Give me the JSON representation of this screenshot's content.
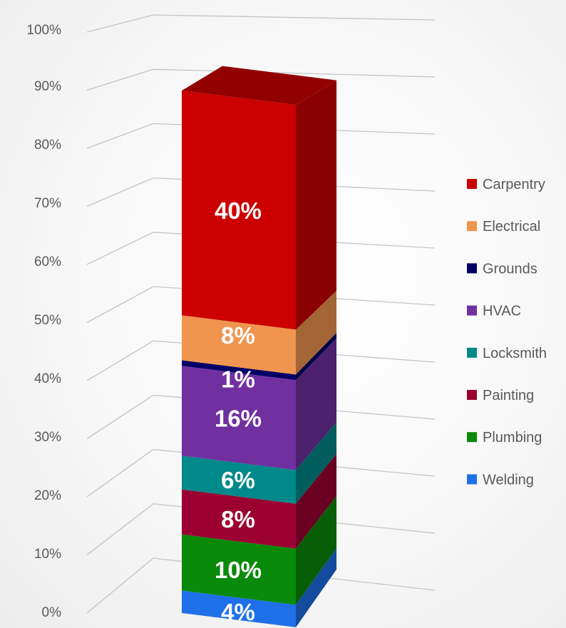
{
  "chart_data": {
    "type": "bar",
    "title": "",
    "xlabel": "",
    "ylabel": "",
    "ylim": [
      0,
      100
    ],
    "y_ticks": [
      "0%",
      "10%",
      "20%",
      "30%",
      "40%",
      "50%",
      "60%",
      "70%",
      "80%",
      "90%",
      "100%"
    ],
    "grid": true,
    "stacked": true,
    "three_d": true,
    "legend_position": "right",
    "categories": [
      ""
    ],
    "series": [
      {
        "name": "Welding",
        "values": [
          4
        ],
        "label": "4%",
        "color": "#1f6fe8"
      },
      {
        "name": "Plumbing",
        "values": [
          10
        ],
        "label": "10%",
        "color": "#0a8a0a"
      },
      {
        "name": "Painting",
        "values": [
          8
        ],
        "label": "8%",
        "color": "#9c0032"
      },
      {
        "name": "Locksmith",
        "values": [
          6
        ],
        "label": "6%",
        "color": "#00898a"
      },
      {
        "name": "HVAC",
        "values": [
          16
        ],
        "label": "16%",
        "color": "#7030a0"
      },
      {
        "name": "Grounds",
        "values": [
          1
        ],
        "label": "1%",
        "color": "#000066"
      },
      {
        "name": "Electrical",
        "values": [
          8
        ],
        "label": "8%",
        "color": "#f0954f"
      },
      {
        "name": "Carpentry",
        "values": [
          40
        ],
        "label": "40%",
        "color": "#cc0000"
      }
    ],
    "legend_order": [
      "Carpentry",
      "Electrical",
      "Grounds",
      "HVAC",
      "Locksmith",
      "Painting",
      "Plumbing",
      "Welding"
    ]
  }
}
